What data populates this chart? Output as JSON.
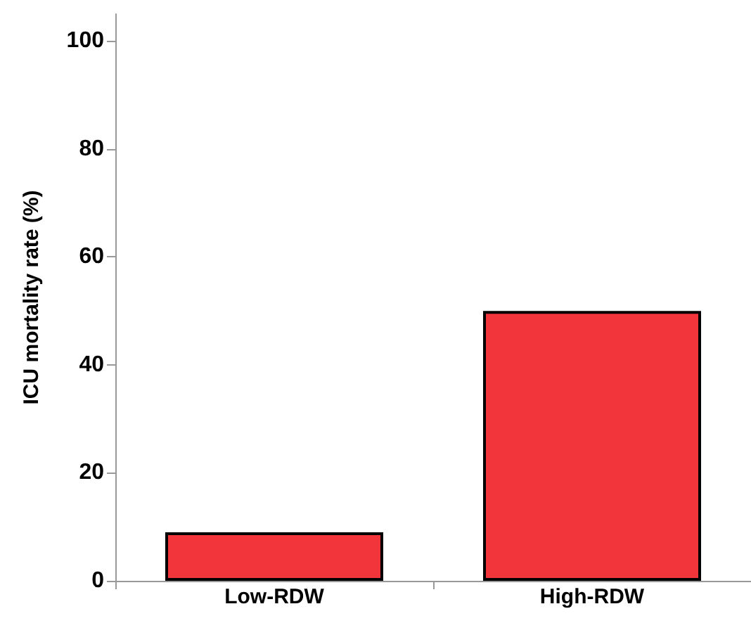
{
  "chart_data": {
    "type": "bar",
    "ylabel": "ICU mortality rate (%)",
    "categories": [
      "Low-RDW",
      "High-RDW"
    ],
    "values": [
      9,
      50
    ],
    "color": "#f2343b",
    "ylim": [
      0,
      105
    ],
    "yticks": [
      0,
      20,
      40,
      60,
      80,
      100
    ]
  }
}
